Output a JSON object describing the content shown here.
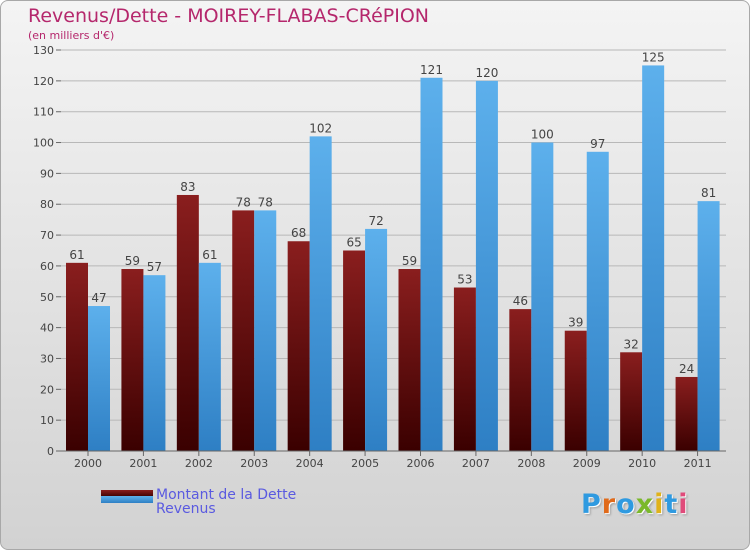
{
  "title": "Revenus/Dette - MOIREY-FLABAS-CRéPION",
  "subtitle": "(en milliers d'€)",
  "logo_text": "Proxiti",
  "colors": {
    "title": "#b5276c",
    "dette": "#6e0b0b",
    "revenus": "#4ea0e0",
    "legend_text": "#5a5ae0"
  },
  "chart_data": {
    "type": "bar",
    "categories": [
      "2000",
      "2001",
      "2002",
      "2003",
      "2004",
      "2005",
      "2006",
      "2007",
      "2008",
      "2009",
      "2010",
      "2011"
    ],
    "series": [
      {
        "name": "Montant de la Dette",
        "values": [
          61,
          59,
          83,
          78,
          68,
          65,
          59,
          53,
          46,
          39,
          32,
          24
        ]
      },
      {
        "name": "Revenus",
        "values": [
          47,
          57,
          61,
          78,
          102,
          72,
          121,
          120,
          100,
          97,
          125,
          81
        ]
      }
    ],
    "ylim": [
      0,
      130
    ],
    "yticks": [
      0,
      10,
      20,
      30,
      40,
      50,
      60,
      70,
      80,
      90,
      100,
      110,
      120,
      130
    ],
    "grid": true,
    "legend_position": "bottom-left"
  }
}
